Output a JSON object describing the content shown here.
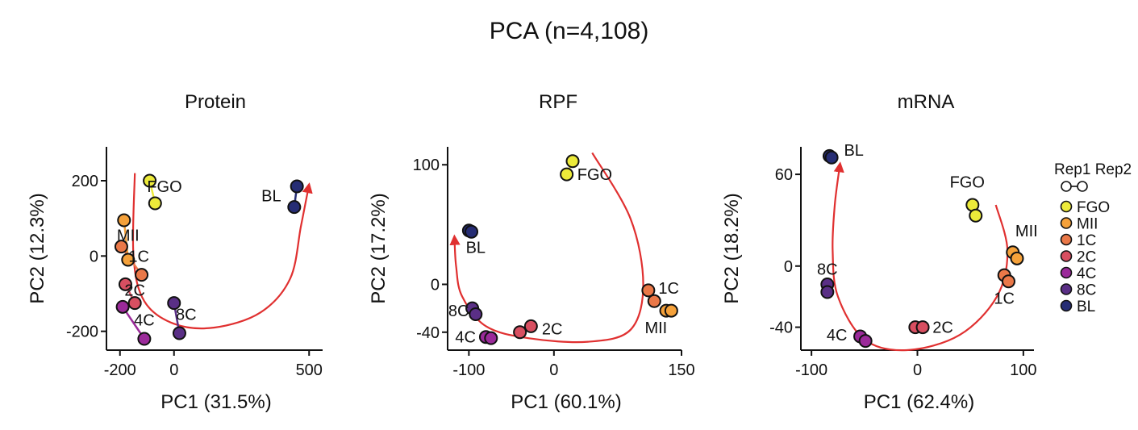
{
  "figure_title": "PCA (n=4,108)",
  "legend": {
    "rep_labels": [
      "Rep1",
      "Rep2"
    ],
    "items": [
      {
        "label": "FGO",
        "color": "#ecea3a"
      },
      {
        "label": "MII",
        "color": "#f5a13a"
      },
      {
        "label": "1C",
        "color": "#ea7848"
      },
      {
        "label": "2C",
        "color": "#d84f61"
      },
      {
        "label": "4C",
        "color": "#9b2a9a"
      },
      {
        "label": "8C",
        "color": "#5a2f86"
      },
      {
        "label": "BL",
        "color": "#262d74"
      }
    ]
  },
  "chart_data": [
    {
      "type": "scatter",
      "title": "Protein",
      "xlabel": "PC1 (31.5%)",
      "ylabel": "PC2 (12.3%)",
      "xlim": [
        -250,
        550
      ],
      "ylim": [
        -250,
        290
      ],
      "xticks": [
        -200,
        0,
        500
      ],
      "yticks": [
        -200,
        0,
        200
      ],
      "grid": false,
      "series": [
        {
          "name": "FGO",
          "points": [
            [
              -90,
              200
            ],
            [
              -70,
              140
            ]
          ]
        },
        {
          "name": "MII",
          "points": [
            [
              -185,
              95
            ],
            [
              -170,
              -10
            ]
          ]
        },
        {
          "name": "1C",
          "points": [
            [
              -195,
              25
            ],
            [
              -120,
              -50
            ]
          ]
        },
        {
          "name": "2C",
          "points": [
            [
              -180,
              -75
            ],
            [
              -145,
              -125
            ]
          ]
        },
        {
          "name": "4C",
          "points": [
            [
              -190,
              -135
            ],
            [
              -110,
              -220
            ]
          ]
        },
        {
          "name": "8C",
          "points": [
            [
              0,
              -125
            ],
            [
              20,
              -205
            ]
          ]
        },
        {
          "name": "BL",
          "points": [
            [
              455,
              185
            ],
            [
              445,
              130
            ]
          ]
        }
      ],
      "point_labels": [
        {
          "text": "FGO",
          "x": -35,
          "y": 185
        },
        {
          "text": "MII",
          "x": -170,
          "y": 55
        },
        {
          "text": "1C",
          "x": -130,
          "y": 0
        },
        {
          "text": "2C",
          "x": -145,
          "y": -90
        },
        {
          "text": "4C",
          "x": -110,
          "y": -170
        },
        {
          "text": "8C",
          "x": 45,
          "y": -155
        },
        {
          "text": "BL",
          "x": 360,
          "y": 160
        }
      ],
      "trajectory": [
        [
          -145,
          220
        ],
        [
          -150,
          0
        ],
        [
          -110,
          -120
        ],
        [
          0,
          -180
        ],
        [
          150,
          -190
        ],
        [
          320,
          -150
        ],
        [
          430,
          -60
        ],
        [
          470,
          80
        ],
        [
          500,
          190
        ]
      ]
    },
    {
      "type": "scatter",
      "title": "RPF",
      "xlabel": "PC1 (60.1%)",
      "ylabel": "PC2 (17.2%)",
      "xlim": [
        -125,
        150
      ],
      "ylim": [
        -55,
        115
      ],
      "xticks": [
        -100,
        0,
        150
      ],
      "yticks": [
        -40,
        0,
        100
      ],
      "grid": false,
      "series": [
        {
          "name": "FGO",
          "points": [
            [
              15,
              92
            ],
            [
              22,
              103
            ]
          ]
        },
        {
          "name": "MII",
          "points": [
            [
              132,
              -22
            ],
            [
              138,
              -22
            ]
          ]
        },
        {
          "name": "1C",
          "points": [
            [
              111,
              -5
            ],
            [
              118,
              -14
            ]
          ]
        },
        {
          "name": "2C",
          "points": [
            [
              -40,
              -40
            ],
            [
              -27,
              -35
            ]
          ]
        },
        {
          "name": "4C",
          "points": [
            [
              -80,
              -44
            ],
            [
              -74,
              -45
            ]
          ]
        },
        {
          "name": "8C",
          "points": [
            [
              -96,
              -20
            ],
            [
              -92,
              -25
            ]
          ]
        },
        {
          "name": "BL",
          "points": [
            [
              -100,
              45
            ],
            [
              -97,
              44
            ]
          ]
        }
      ],
      "point_labels": [
        {
          "text": "FGO",
          "x": 48,
          "y": 92
        },
        {
          "text": "1C",
          "x": 135,
          "y": -3
        },
        {
          "text": "MII",
          "x": 120,
          "y": -36
        },
        {
          "text": "2C",
          "x": -2,
          "y": -37
        },
        {
          "text": "4C",
          "x": -104,
          "y": -44
        },
        {
          "text": "8C",
          "x": -112,
          "y": -22
        },
        {
          "text": "BL",
          "x": -92,
          "y": 31
        }
      ],
      "trajectory": [
        [
          45,
          110
        ],
        [
          90,
          55
        ],
        [
          105,
          0
        ],
        [
          90,
          -38
        ],
        [
          40,
          -48
        ],
        [
          -30,
          -45
        ],
        [
          -80,
          -35
        ],
        [
          -108,
          -10
        ],
        [
          -115,
          15
        ],
        [
          -117,
          40
        ]
      ]
    },
    {
      "type": "scatter",
      "title": "mRNA",
      "xlabel": "PC1 (62.4%)",
      "ylabel": "PC2 (18.2%)",
      "xlim": [
        -110,
        110
      ],
      "ylim": [
        -55,
        78
      ],
      "xticks": [
        -100,
        0,
        100
      ],
      "yticks": [
        -40,
        0,
        60
      ],
      "grid": false,
      "series": [
        {
          "name": "FGO",
          "points": [
            [
              52,
              40
            ],
            [
              55,
              33
            ]
          ]
        },
        {
          "name": "MII",
          "points": [
            [
              90,
              9
            ],
            [
              94,
              5
            ]
          ]
        },
        {
          "name": "1C",
          "points": [
            [
              82,
              -6
            ],
            [
              86,
              -10
            ]
          ]
        },
        {
          "name": "2C",
          "points": [
            [
              -2,
              -40
            ],
            [
              5,
              -40
            ]
          ]
        },
        {
          "name": "4C",
          "points": [
            [
              -54,
              -46
            ],
            [
              -49,
              -49
            ]
          ]
        },
        {
          "name": "8C",
          "points": [
            [
              -85,
              -12
            ],
            [
              -85,
              -17
            ]
          ]
        },
        {
          "name": "BL",
          "points": [
            [
              -83,
              72
            ],
            [
              -81,
              71
            ]
          ]
        }
      ],
      "point_labels": [
        {
          "text": "FGO",
          "x": 47,
          "y": 55
        },
        {
          "text": "MII",
          "x": 103,
          "y": 23
        },
        {
          "text": "1C",
          "x": 82,
          "y": -21
        },
        {
          "text": "2C",
          "x": 24,
          "y": -40
        },
        {
          "text": "4C",
          "x": -76,
          "y": -45
        },
        {
          "text": "8C",
          "x": -85,
          "y": -2
        },
        {
          "text": "BL",
          "x": -60,
          "y": 76
        }
      ],
      "trajectory": [
        [
          74,
          40
        ],
        [
          85,
          10
        ],
        [
          75,
          -20
        ],
        [
          40,
          -45
        ],
        [
          -10,
          -55
        ],
        [
          -50,
          -48
        ],
        [
          -75,
          -20
        ],
        [
          -80,
          10
        ],
        [
          -78,
          40
        ],
        [
          -73,
          67
        ]
      ]
    }
  ]
}
